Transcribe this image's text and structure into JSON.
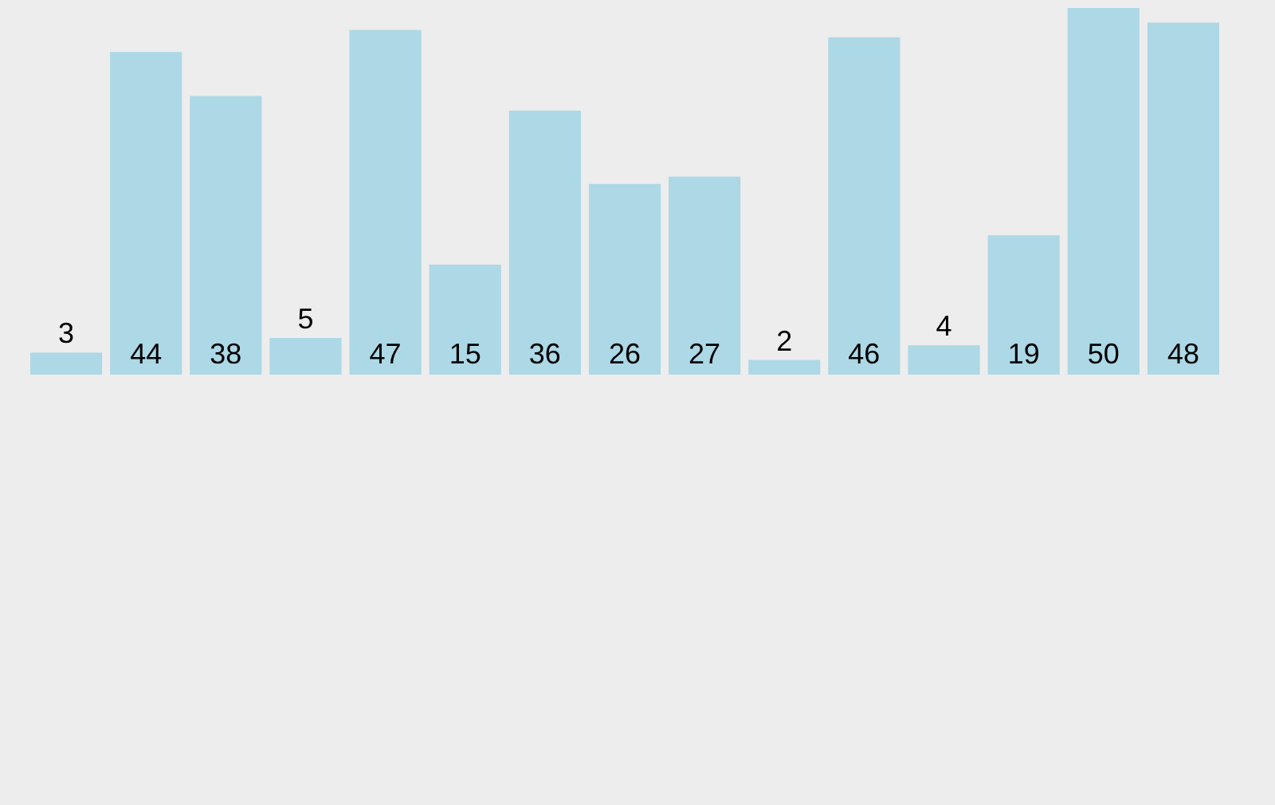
{
  "chart_data": {
    "type": "bar",
    "categories": [
      null,
      null,
      null,
      null,
      null,
      null,
      null,
      null,
      null,
      null,
      null,
      null,
      null,
      null,
      null
    ],
    "values": [
      3,
      44,
      38,
      5,
      47,
      15,
      36,
      26,
      27,
      2,
      46,
      4,
      19,
      50,
      48
    ],
    "color": "#add8e6",
    "data_labels": true
  }
}
